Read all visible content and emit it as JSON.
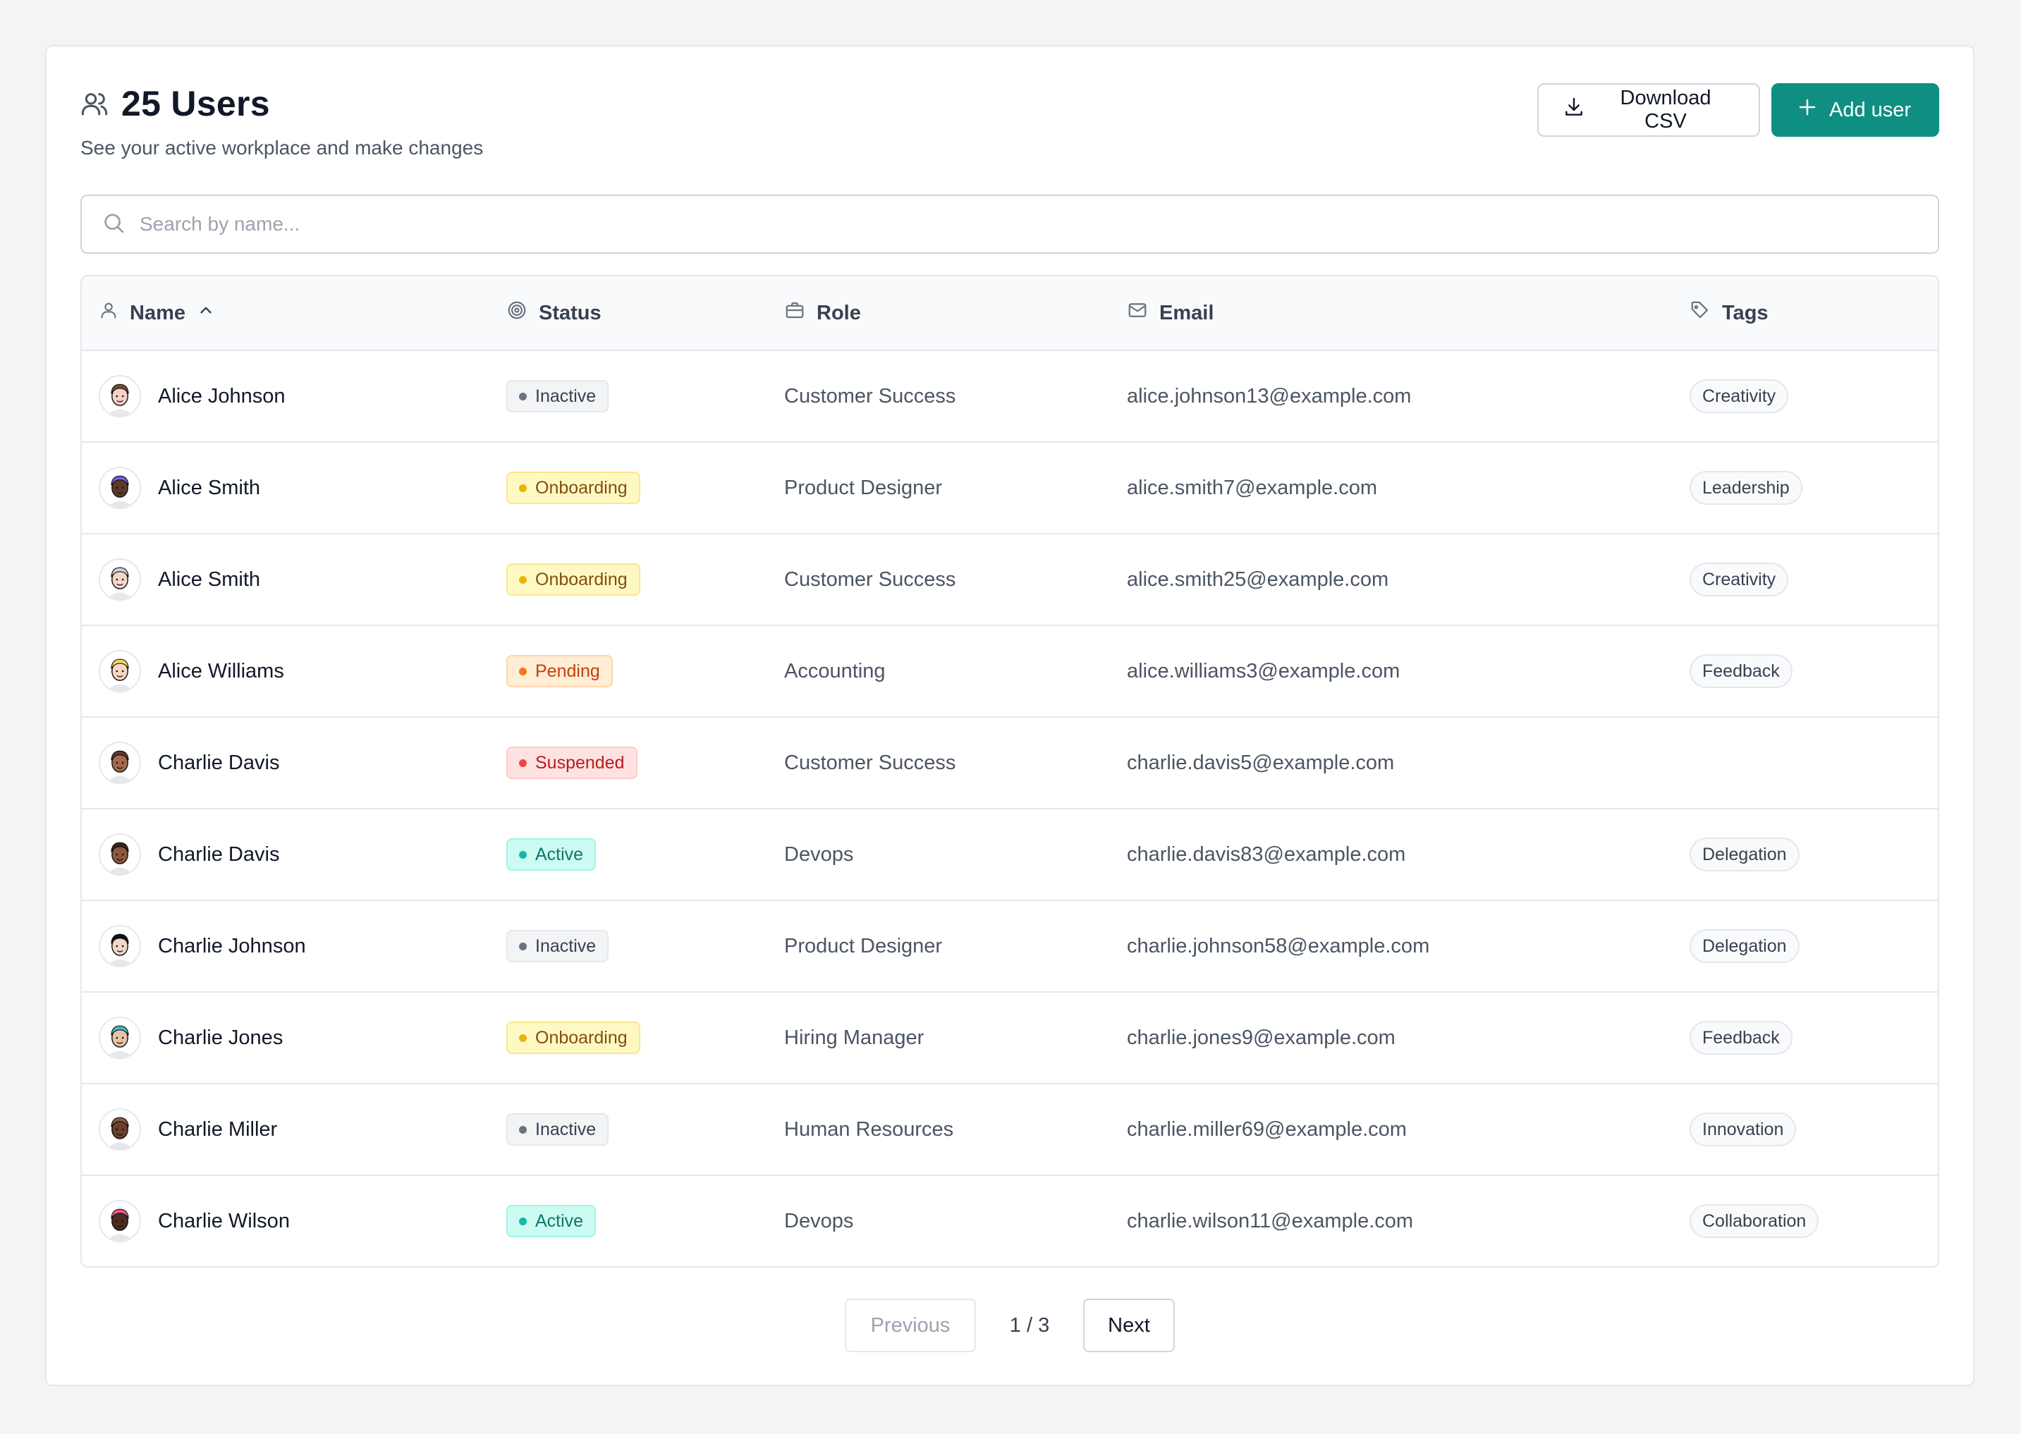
{
  "header": {
    "title": "25 Users",
    "subtitle": "See your active workplace and make changes",
    "download_label": "Download CSV",
    "add_label": "Add user"
  },
  "search": {
    "placeholder": "Search by name..."
  },
  "table": {
    "columns": {
      "name": "Name",
      "status": "Status",
      "role": "Role",
      "email": "Email",
      "tags": "Tags"
    },
    "sort": {
      "column": "name",
      "direction": "ascending"
    },
    "rows": [
      {
        "name": "Alice Johnson",
        "status": "Inactive",
        "status_key": "inactive",
        "role": "Customer Success",
        "email": "alice.johnson13@example.com",
        "tag": "Creativity",
        "avatar_color": "#f5d0c5",
        "hair_color": "#7c4a2d"
      },
      {
        "name": "Alice Smith",
        "status": "Onboarding",
        "status_key": "onboarding",
        "role": "Product Designer",
        "email": "alice.smith7@example.com",
        "tag": "Leadership",
        "avatar_color": "#5b3a29",
        "hair_color": "#7c5ce0"
      },
      {
        "name": "Alice Smith",
        "status": "Onboarding",
        "status_key": "onboarding",
        "role": "Customer Success",
        "email": "alice.smith25@example.com",
        "tag": "Creativity",
        "avatar_color": "#f1d7c8",
        "hair_color": "#d1d5db"
      },
      {
        "name": "Alice Williams",
        "status": "Pending",
        "status_key": "pending",
        "role": "Accounting",
        "email": "alice.williams3@example.com",
        "tag": "Feedback",
        "avatar_color": "#f6d7c0",
        "hair_color": "#f6e05e"
      },
      {
        "name": "Charlie Davis",
        "status": "Suspended",
        "status_key": "suspended",
        "role": "Customer Success",
        "email": "charlie.davis5@example.com",
        "tag": "",
        "avatar_color": "#a46a4d",
        "hair_color": "#5a3a2a"
      },
      {
        "name": "Charlie Davis",
        "status": "Active",
        "status_key": "active",
        "role": "Devops",
        "email": "charlie.davis83@example.com",
        "tag": "Delegation",
        "avatar_color": "#8b5a3c",
        "hair_color": "#3b2418"
      },
      {
        "name": "Charlie Johnson",
        "status": "Inactive",
        "status_key": "inactive",
        "role": "Product Designer",
        "email": "charlie.johnson58@example.com",
        "tag": "Delegation",
        "avatar_color": "#f1d7c8",
        "hair_color": "#111111"
      },
      {
        "name": "Charlie Jones",
        "status": "Onboarding",
        "status_key": "onboarding",
        "role": "Hiring Manager",
        "email": "charlie.jones9@example.com",
        "tag": "Feedback",
        "avatar_color": "#e8c2a8",
        "hair_color": "#3cc1c9"
      },
      {
        "name": "Charlie Miller",
        "status": "Inactive",
        "status_key": "inactive",
        "role": "Human Resources",
        "email": "charlie.miller69@example.com",
        "tag": "Innovation",
        "avatar_color": "#6b3f2a",
        "hair_color": "#8b5a3c"
      },
      {
        "name": "Charlie Wilson",
        "status": "Active",
        "status_key": "active",
        "role": "Devops",
        "email": "charlie.wilson11@example.com",
        "tag": "Collaboration",
        "avatar_color": "#4a2e20",
        "hair_color": "#e85d8a"
      }
    ]
  },
  "pagination": {
    "previous_label": "Previous",
    "page_label": "1 / 3",
    "next_label": "Next"
  },
  "colors": {
    "accent": "#0f8f81",
    "background": "#f3f4f6",
    "border": "#e5e7eb"
  },
  "icons": {
    "title": "users-icon",
    "download": "download-icon",
    "add": "plus-icon",
    "search": "search-icon",
    "name": "user-icon",
    "status": "target-icon",
    "role": "briefcase-icon",
    "email": "mail-icon",
    "tags": "tag-icon",
    "sort": "chevron-up-icon"
  }
}
